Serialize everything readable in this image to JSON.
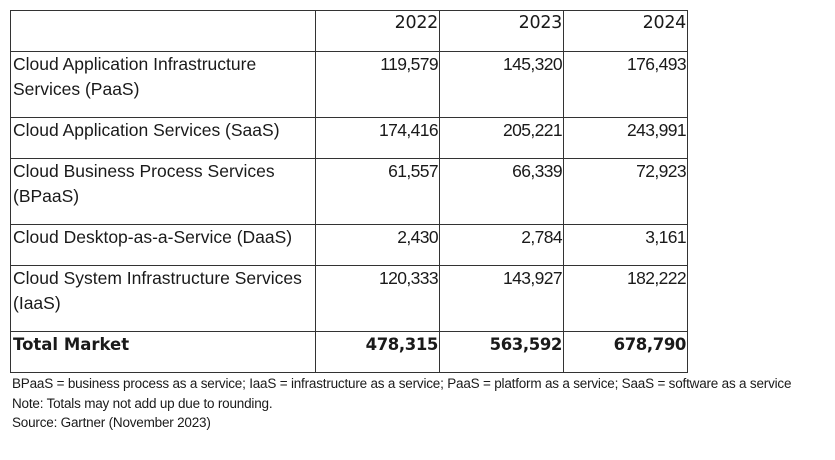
{
  "table": {
    "columns": [
      "",
      "2022",
      "2023",
      "2024"
    ],
    "rows": [
      {
        "label": "Cloud Application Infrastructure Services (PaaS)",
        "values": [
          "119,579",
          "145,320",
          "176,493"
        ]
      },
      {
        "label": "Cloud Application Services (SaaS)",
        "values": [
          "174,416",
          "205,221",
          "243,991"
        ]
      },
      {
        "label": "Cloud Business Process Services (BPaaS)",
        "values": [
          "61,557",
          "66,339",
          "72,923"
        ]
      },
      {
        "label": "Cloud Desktop-as-a-Service (DaaS)",
        "values": [
          "2,430",
          "2,784",
          "3,161"
        ]
      },
      {
        "label": "Cloud System Infrastructure Services (IaaS)",
        "values": [
          "120,333",
          "143,927",
          "182,222"
        ]
      }
    ],
    "total": {
      "label": "Total Market",
      "values": [
        "478,315",
        "563,592",
        "678,790"
      ]
    }
  },
  "notes": {
    "abbreviations": "BPaaS = business process as a service; IaaS = infrastructure as a service; PaaS = platform as a service; SaaS = software as a service",
    "note": "Note: Totals may not add up due to rounding.",
    "source": "Source: Gartner (November 2023)"
  }
}
